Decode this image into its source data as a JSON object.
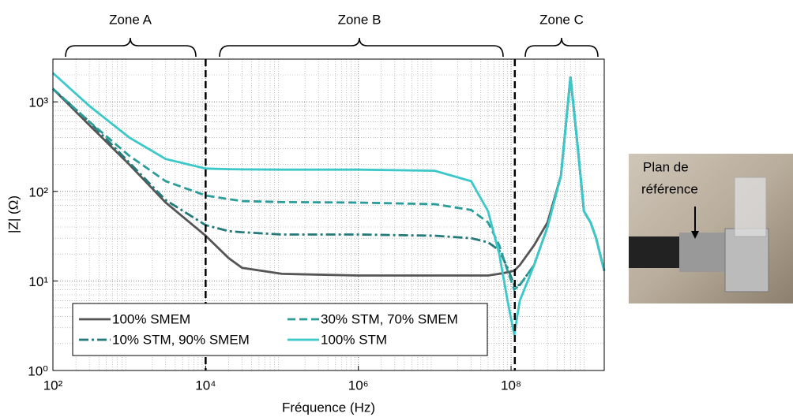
{
  "chart_data": {
    "type": "line",
    "x_label": "Fréquence (Hz)",
    "y_label": "|Z| (Ω)",
    "log_x": true,
    "log_y": true,
    "grid": true,
    "minor_grid": true,
    "legend": "lower left",
    "xlim": [
      100,
      1660000000
    ],
    "ylim": [
      1,
      3000
    ],
    "xticks": [
      {
        "value": 100,
        "label": "10²"
      },
      {
        "value": 10000,
        "label": "10⁴"
      },
      {
        "value": 1000000,
        "label": "10⁶"
      },
      {
        "value": 100000000,
        "label": "10⁸"
      }
    ],
    "yticks": [
      {
        "value": 1,
        "label": "10⁰"
      },
      {
        "value": 10,
        "label": "10¹"
      },
      {
        "value": 100,
        "label": "10²"
      },
      {
        "value": 1000,
        "label": "10³"
      }
    ],
    "vlines": [
      10000,
      112000000
    ],
    "zones": [
      "Zone A",
      "Zone B",
      "Zone C"
    ],
    "photo_label": [
      "Plan de",
      "référence"
    ],
    "x": [
      100,
      300,
      1000,
      3000,
      10000,
      20000,
      30000,
      100000,
      1000000,
      10000000,
      30000000,
      50000000,
      70000000,
      90000000,
      110000000,
      130000000,
      200000000,
      300000000,
      450000000,
      600000000,
      750000000,
      900000000,
      1100000000,
      1300000000,
      1660000000
    ],
    "series": [
      {
        "name": "100% SMEM",
        "color": "#555555",
        "style": "solid",
        "values": [
          1400,
          550,
          200,
          75,
          32,
          18,
          14,
          12,
          11.5,
          11.5,
          11.5,
          11.5,
          12,
          12.5,
          13,
          15,
          25,
          45,
          150,
          1900,
          300,
          60,
          45,
          30,
          13
        ]
      },
      {
        "name": "10% STM, 90% SMEM",
        "color": "#237a78",
        "style": "dashdot",
        "values": [
          1400,
          600,
          210,
          80,
          42,
          36,
          35,
          33,
          33,
          32,
          30,
          27,
          22,
          14,
          9,
          9,
          15,
          40,
          150,
          1900,
          300,
          60,
          45,
          30,
          13
        ]
      },
      {
        "name": "30% STM, 70% SMEM",
        "color": "#2a9d9a",
        "style": "dashed",
        "values": [
          1400,
          600,
          250,
          130,
          90,
          82,
          78,
          76,
          75,
          72,
          62,
          45,
          25,
          13,
          8,
          9,
          15,
          40,
          150,
          1900,
          300,
          60,
          45,
          30,
          13
        ]
      },
      {
        "name": "100% STM",
        "color": "#3cc8c8",
        "style": "solid",
        "values": [
          2100,
          900,
          400,
          230,
          180,
          177,
          176,
          175,
          175,
          170,
          130,
          60,
          20,
          6,
          2.5,
          6,
          15,
          40,
          150,
          1900,
          300,
          60,
          45,
          30,
          13
        ]
      }
    ]
  }
}
